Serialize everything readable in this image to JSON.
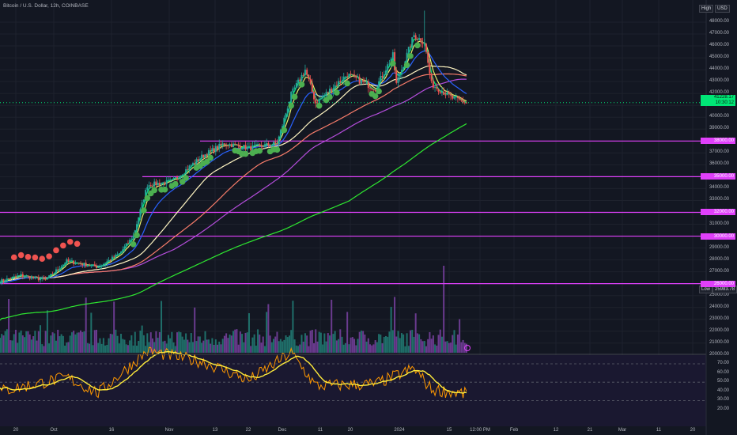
{
  "header": {
    "symbol": "Bitcoin / U.S. Dollar, 12h, COINBASE",
    "high_label": "High",
    "currency": "USD",
    "low_label": "Low",
    "low_value": "25983.78"
  },
  "price_tag": {
    "price": "41228.17",
    "countdown": "10:30:12"
  },
  "horizontal_levels": [
    {
      "value": 38000,
      "label": "38000.00"
    },
    {
      "value": 35000,
      "label": "35000.00"
    },
    {
      "value": 32000,
      "label": "32000.00"
    },
    {
      "value": 30000,
      "label": "30000.00"
    },
    {
      "value": 26000,
      "label": "26000.00"
    }
  ],
  "price_axis": {
    "ticks": [
      "48000.00",
      "47000.00",
      "46000.00",
      "45000.00",
      "44000.00",
      "43000.00",
      "42000.00",
      "41000.00",
      "40000.00",
      "39000.00",
      "37000.00",
      "36000.00",
      "34000.00",
      "33000.00",
      "31000.00",
      "29000.00",
      "28000.00",
      "27000.00",
      "25000.00",
      "24000.00",
      "23000.00",
      "22000.00",
      "21000.00",
      "20000.00"
    ]
  },
  "oscillator_axis": {
    "ticks": [
      "70.00",
      "60.00",
      "50.00",
      "40.00",
      "30.00",
      "20.00"
    ]
  },
  "time_axis": {
    "labels": [
      "20",
      "Oct",
      "16",
      "Nov",
      "13",
      "22",
      "Dec",
      "11",
      "20",
      "2024",
      "15",
      "12:00 PM",
      "Feb",
      "12",
      "21",
      "Mar",
      "11",
      "20"
    ]
  },
  "colors": {
    "background": "#131722",
    "up": "#26a69a",
    "down": "#ef5350",
    "level_line": "#e040fb",
    "ema_fast": "#00e676",
    "ema_mid": "#e8f06a",
    "ema_blue": "#2962ff",
    "ma_cream": "#fff5c2",
    "ma_salmon": "#f77c6a",
    "ma_purple": "#b44ddb",
    "ma_green": "#2ee830",
    "rsi": "#ff9800",
    "rsi_ma": "#ffeb3b"
  },
  "chart_data": {
    "type": "candlestick",
    "title": "Bitcoin / U.S. Dollar, 12h, COINBASE",
    "ylim": [
      20000,
      49000
    ],
    "date_range": [
      "2023-09-12",
      "2024-01-23"
    ],
    "last_close": 41228.17,
    "session_high_approx": 48970,
    "session_low": 25983.78,
    "close_anchors": [
      {
        "date": "2023-09-12",
        "close": 26200
      },
      {
        "date": "2023-09-18",
        "close": 26700
      },
      {
        "date": "2023-09-25",
        "close": 26300
      },
      {
        "date": "2023-10-01",
        "close": 27900
      },
      {
        "date": "2023-10-10",
        "close": 27400
      },
      {
        "date": "2023-10-16",
        "close": 28500
      },
      {
        "date": "2023-10-20",
        "close": 30000
      },
      {
        "date": "2023-10-24",
        "close": 34300
      },
      {
        "date": "2023-10-31",
        "close": 34600
      },
      {
        "date": "2023-11-09",
        "close": 36800
      },
      {
        "date": "2023-11-15",
        "close": 37800
      },
      {
        "date": "2023-11-22",
        "close": 37400
      },
      {
        "date": "2023-11-30",
        "close": 37800
      },
      {
        "date": "2023-12-04",
        "close": 41900
      },
      {
        "date": "2023-12-08",
        "close": 44000
      },
      {
        "date": "2023-12-11",
        "close": 41200
      },
      {
        "date": "2023-12-20",
        "close": 43600
      },
      {
        "date": "2023-12-28",
        "close": 42400
      },
      {
        "date": "2024-01-02",
        "close": 45200
      },
      {
        "date": "2024-01-03",
        "close": 42800
      },
      {
        "date": "2024-01-08",
        "close": 46900
      },
      {
        "date": "2024-01-11",
        "close": 46300
      },
      {
        "date": "2024-01-13",
        "close": 42800
      },
      {
        "date": "2024-01-19",
        "close": 41600
      },
      {
        "date": "2024-01-23",
        "close": 41228
      }
    ],
    "rsi_anchors": [
      {
        "date": "2023-09-12",
        "value": 40
      },
      {
        "date": "2023-10-01",
        "value": 55
      },
      {
        "date": "2023-10-10",
        "value": 38
      },
      {
        "date": "2023-10-24",
        "value": 84
      },
      {
        "date": "2023-11-09",
        "value": 72
      },
      {
        "date": "2023-11-22",
        "value": 52
      },
      {
        "date": "2023-12-04",
        "value": 82
      },
      {
        "date": "2023-12-11",
        "value": 46
      },
      {
        "date": "2023-12-28",
        "value": 48
      },
      {
        "date": "2024-01-08",
        "value": 65
      },
      {
        "date": "2024-01-13",
        "value": 42
      },
      {
        "date": "2024-01-23",
        "value": 37
      }
    ]
  }
}
